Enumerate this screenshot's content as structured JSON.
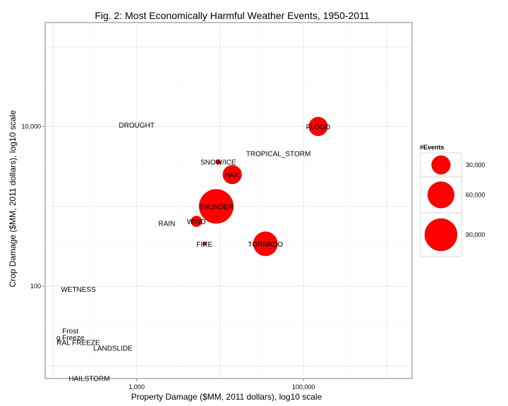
{
  "chart_data": {
    "type": "scatter",
    "title": "Fig. 2: Most Economically Harmful Weather Events, 1950-2011",
    "xlabel": "Property Damage ($MM, 2011 dollars), log10 scale",
    "ylabel": "Crop Damage ($MM, 2011 dollars), log10 scale",
    "x_scale": "log10",
    "y_scale": "log10",
    "xlim": [
      80,
      2000000
    ],
    "ylim": [
      7,
      200000
    ],
    "x_ticks": [
      {
        "value": 1000,
        "label": "1,000"
      },
      {
        "value": 100000,
        "label": "100,000"
      }
    ],
    "y_ticks": [
      {
        "value": 100,
        "label": "100"
      },
      {
        "value": 10000,
        "label": "10,000"
      }
    ],
    "grid": true,
    "point_color": "#ff0000",
    "legend": {
      "title": "#Events",
      "position": "right",
      "entries": [
        {
          "label": "30,000",
          "value": 30000
        },
        {
          "label": "60,000",
          "value": 60000
        },
        {
          "label": "90,000",
          "value": 90000
        }
      ]
    },
    "points": [
      {
        "label": "DROUGHT",
        "x": 1000,
        "y": 10500,
        "events": 0
      },
      {
        "label": "FLOOD",
        "x": 150000,
        "y": 10000,
        "events": 30000
      },
      {
        "label": "TROPICAL_STORM",
        "x": 50000,
        "y": 4600,
        "events": 0
      },
      {
        "label": "SNOW/ICE",
        "x": 9500,
        "y": 3600,
        "events": 2000
      },
      {
        "label": "HAIL",
        "x": 14000,
        "y": 2500,
        "events": 30000
      },
      {
        "label": "THUNDER",
        "x": 9000,
        "y": 1000,
        "events": 100000
      },
      {
        "label": "RAIN",
        "x": 2300,
        "y": 620,
        "events": 0
      },
      {
        "label": "WIND",
        "x": 5200,
        "y": 650,
        "events": 10000
      },
      {
        "label": "FIRE",
        "x": 6500,
        "y": 340,
        "events": 1000
      },
      {
        "label": "TORNADO",
        "x": 35000,
        "y": 340,
        "events": 50000
      },
      {
        "label": "WETNESS",
        "x": 200,
        "y": 92,
        "events": 0
      },
      {
        "label": "Frost",
        "x": 160,
        "y": 28,
        "events": 0
      },
      {
        "label": "g Freeze",
        "x": 160,
        "y": 23,
        "events": 0
      },
      {
        "label": "RAL FREEZE",
        "x": 200,
        "y": 20,
        "events": 0
      },
      {
        "label": "LANDSLIDE",
        "x": 520,
        "y": 17,
        "events": 0
      },
      {
        "label": "HAILSTORM",
        "x": 270,
        "y": 7.1,
        "events": 0
      }
    ]
  }
}
